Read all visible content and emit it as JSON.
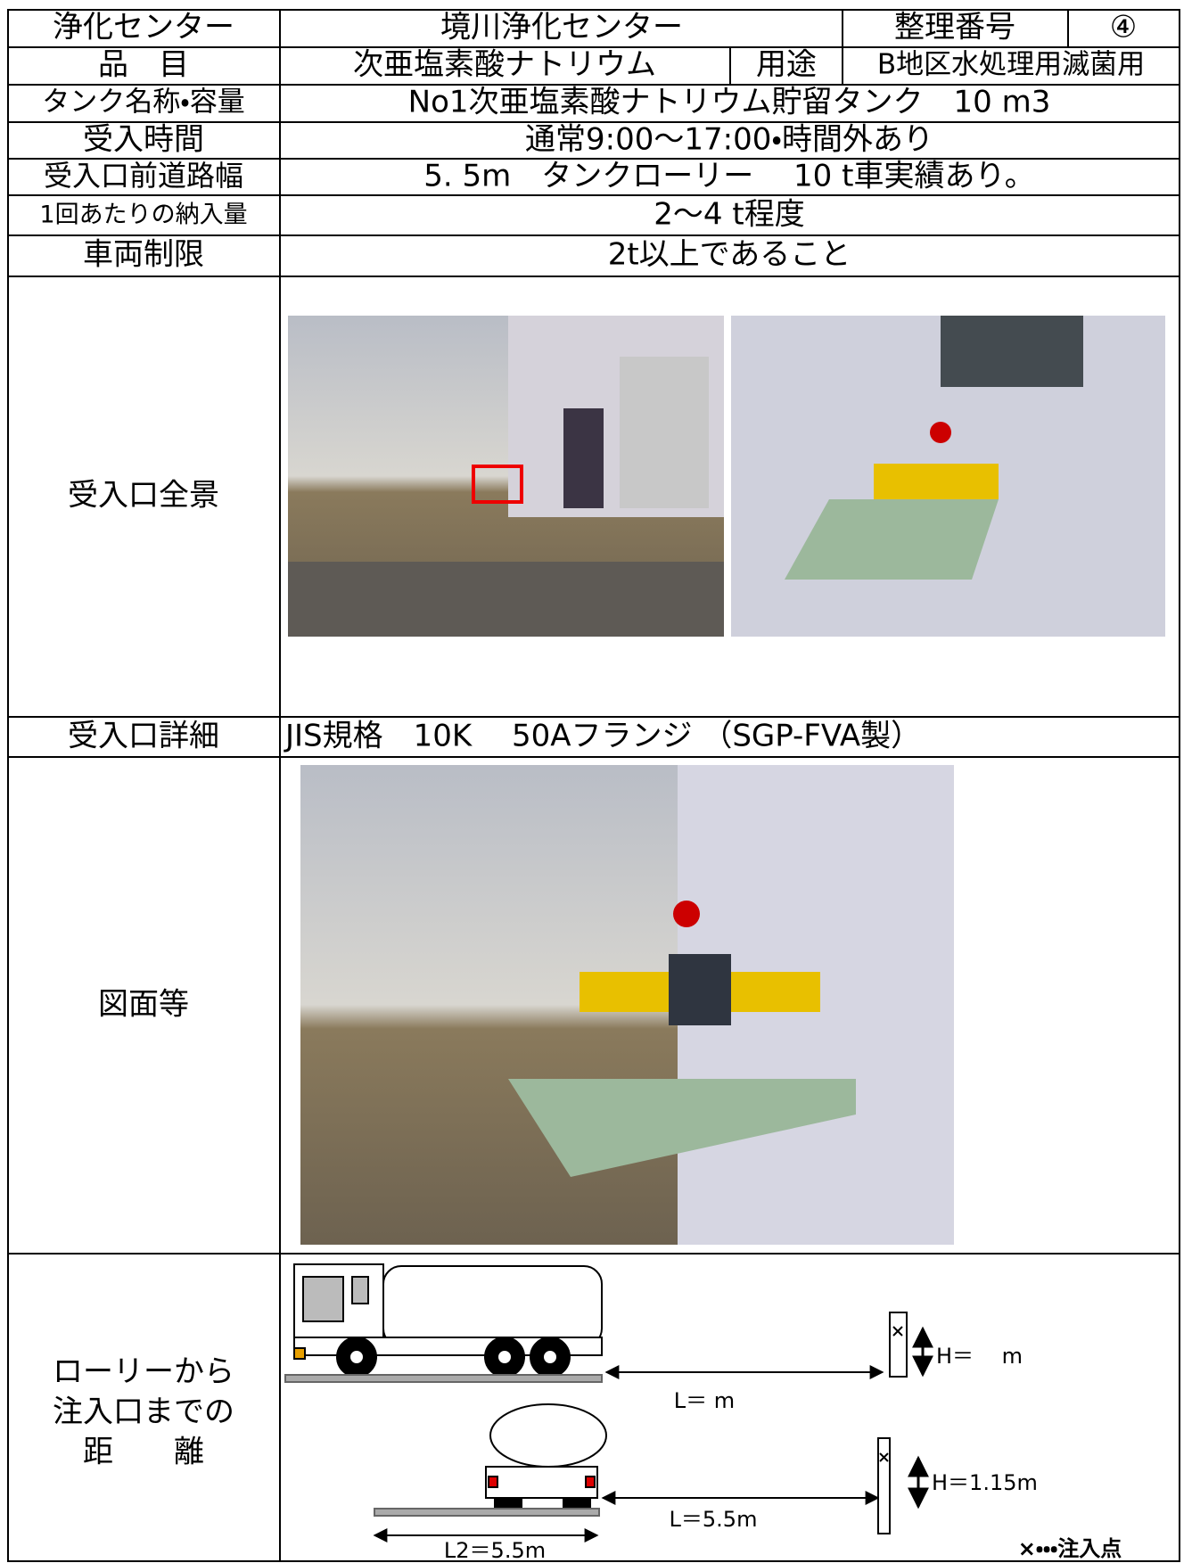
{
  "table": {
    "rows": [
      [
        "浄化センター",
        "境川浄化センター",
        "整理番号",
        "④"
      ],
      [
        "品　目",
        "次亜塩素酸ナトリウム",
        "用途",
        "B地区水処理用滅菌用"
      ],
      [
        "タンク名称・容量",
        "No1次亜塩素酸ナトリウム貯留タンク　10 m3"
      ],
      [
        "受入時間",
        "通常9:00～17:00・時間外あり"
      ],
      [
        "受入口前道路幅",
        "5. 5m　タンクローリー　 10 t車実績あり。"
      ],
      [
        "1回あたりの納入量",
        "2～4 t程度"
      ],
      [
        "車両制限",
        "2t以上であること"
      ],
      [
        "受入口全景"
      ],
      [
        "受入口詳細",
        "JIS規格　10K　 50Aフランジ （SGP-FVA製）"
      ],
      [
        "図面等"
      ],
      [
        [
          "ローリーから",
          "注入口までの",
          "距　　離"
        ]
      ]
    ]
  },
  "diagram": {
    "side_length": "L＝ m",
    "side_height": "H＝　 m",
    "rear_length": "L＝5.5m",
    "rear_height": "H＝1.15m",
    "rear_width": "L2＝5.5m",
    "legend": "×・・・注入点"
  }
}
